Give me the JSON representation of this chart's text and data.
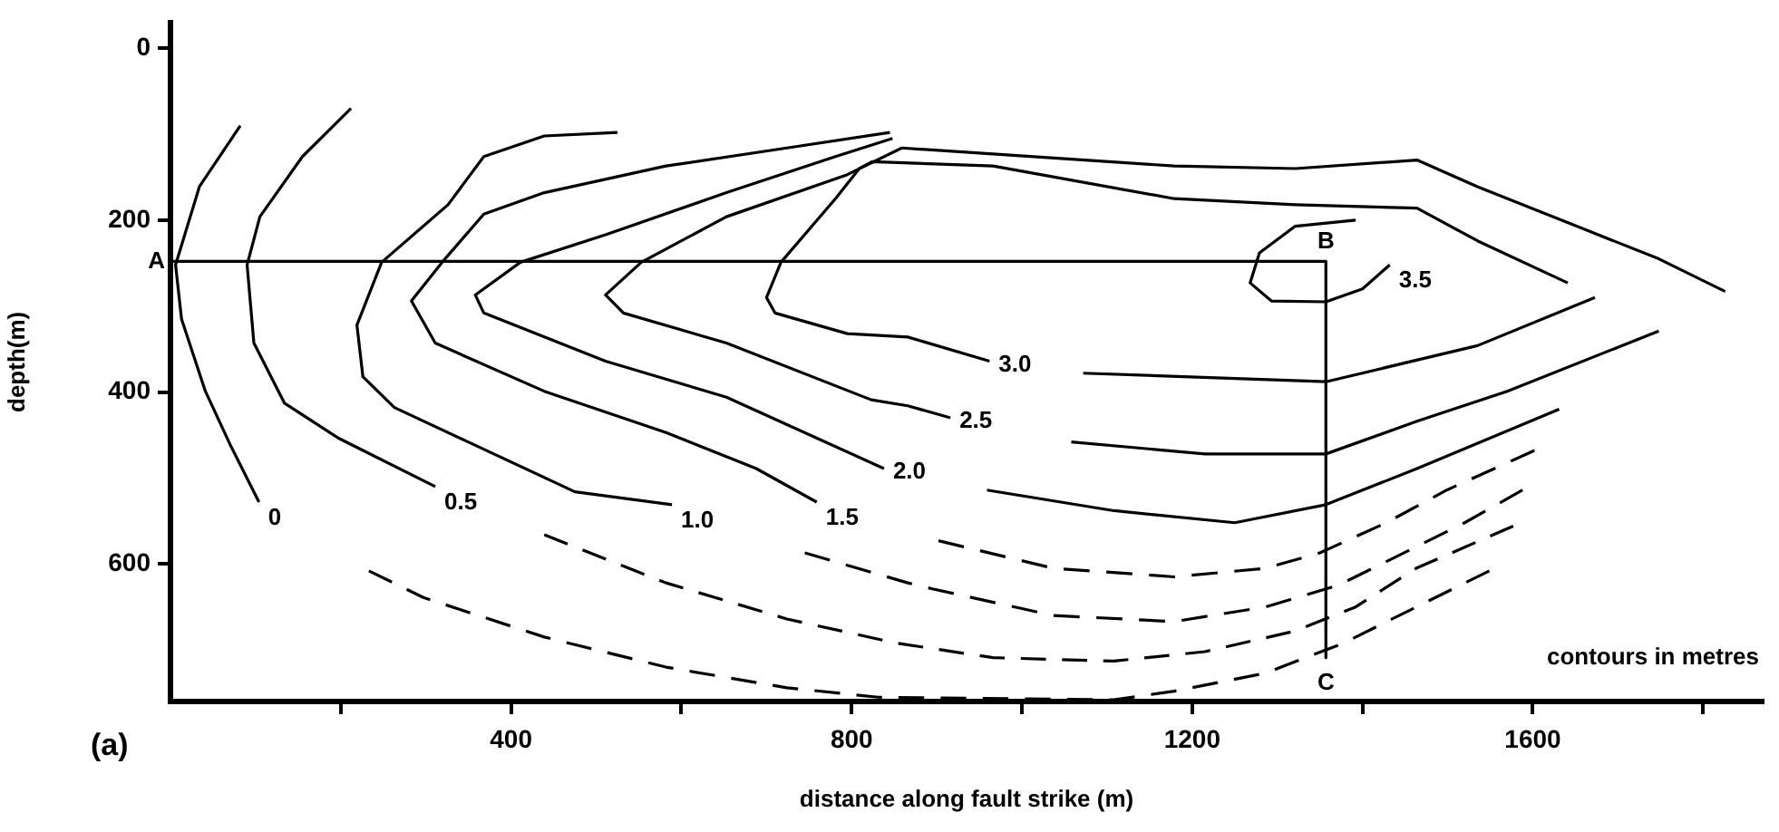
{
  "chart_data": {
    "type": "line",
    "xlabel": "distance along fault strike (m)",
    "ylabel": "depth(m)",
    "xlim": [
      0,
      1870
    ],
    "ylim": [
      760,
      -30
    ],
    "xticks": [
      {
        "value": 200,
        "label": null
      },
      400,
      {
        "value": 600,
        "label": null
      },
      800,
      {
        "value": 1000,
        "label": null
      },
      1200,
      {
        "value": 1400,
        "label": null
      },
      1600,
      {
        "value": 1800,
        "label": null
      }
    ],
    "yticks": [
      0,
      200,
      400,
      600
    ],
    "grid": false,
    "legend": false,
    "marker": "none",
    "series": [
      {
        "name": "0",
        "color": "#000000",
        "line_style": "solid",
        "x": [
          82,
          34,
          6,
          13,
          41,
          70,
          104
        ],
        "values": [
          90,
          161,
          252,
          315,
          399,
          461,
          528
        ]
      },
      {
        "color": "#000000",
        "line_style": "dashed",
        "x": [
          233,
          297,
          439,
          582,
          724,
          831,
          1108,
          1179,
          1286,
          1378,
          1449,
          1549
        ],
        "values": [
          608,
          639,
          685,
          720,
          744,
          755,
          758,
          748,
          727,
          692,
          657,
          608
        ]
      },
      {
        "name": "0.5",
        "color": "#000000",
        "line_style": "solid",
        "x": [
          212,
          155,
          105,
          90,
          98,
          134,
          198,
          311
        ],
        "values": [
          70,
          126,
          196,
          252,
          343,
          413,
          454,
          510
        ]
      },
      {
        "color": "#000000",
        "line_style": "dashed",
        "x": [
          439,
          582,
          724,
          852,
          966,
          1108,
          1215,
          1321,
          1392,
          1463,
          1577
        ],
        "values": [
          566,
          622,
          664,
          692,
          709,
          713,
          702,
          678,
          650,
          605,
          556
        ]
      },
      {
        "name": "1.0",
        "color": "#000000",
        "line_style": "solid",
        "x": [
          525,
          439,
          368,
          326,
          248,
          219,
          226,
          263,
          369,
          475,
          589
        ],
        "values": [
          98,
          102,
          126,
          182,
          249,
          322,
          382,
          418,
          467,
          516,
          531
        ]
      },
      {
        "color": "#000000",
        "line_style": "dashed",
        "x": [
          745,
          866,
          895,
          1037,
          1179,
          1286,
          1371,
          1449,
          1520,
          1588
        ],
        "values": [
          587,
          622,
          629,
          660,
          667,
          650,
          625,
          587,
          552,
          514
        ]
      },
      {
        "name": "1.5",
        "color": "#000000",
        "line_style": "solid",
        "x": [
          845,
          724,
          582,
          439,
          368,
          319,
          283,
          311,
          439,
          582,
          688,
          759
        ],
        "values": [
          98,
          116,
          137,
          168,
          193,
          249,
          294,
          343,
          399,
          447,
          489,
          528
        ]
      },
      {
        "color": "#000000",
        "line_style": "dashed",
        "x": [
          902,
          1037,
          1179,
          1286,
          1350,
          1428,
          1499,
          1602
        ],
        "values": [
          573,
          605,
          615,
          605,
          587,
          552,
          514,
          468
        ]
      },
      {
        "name": "2.0",
        "color": "#000000",
        "line_style": "solid",
        "x": [
          848,
          781,
          653,
          511,
          411,
          358,
          368,
          511,
          653,
          838,
          null,
          959,
          1108,
          1250,
          1357,
          1464,
          1631
        ],
        "values": [
          105,
          126,
          168,
          217,
          249,
          287,
          308,
          364,
          406,
          489,
          null,
          514,
          538,
          552,
          531,
          489,
          420
        ]
      },
      {
        "name": "2.5",
        "color": "#000000",
        "line_style": "solid",
        "x": [
          1826,
          1748,
          1535,
          1464,
          1321,
          1179,
          966,
          859,
          795,
          653,
          553,
          511,
          532,
          653,
          823,
          866,
          916,
          null,
          1058,
          1215,
          1357,
          1464,
          1570,
          1748
        ],
        "values": [
          283,
          245,
          161,
          130,
          140,
          137,
          123,
          116,
          147,
          196,
          249,
          287,
          308,
          343,
          409,
          416,
          430,
          null,
          458,
          472,
          472,
          434,
          399,
          329
        ]
      },
      {
        "name": "3.0",
        "color": "#000000",
        "line_style": "solid",
        "x": [
          1641,
          1535,
          1464,
          1321,
          1179,
          966,
          824,
          809,
          781,
          717,
          700,
          710,
          795,
          866,
          962,
          null,
          1072,
          1357,
          1535,
          1673
        ],
        "values": [
          273,
          224,
          186,
          182,
          175,
          137,
          132,
          140,
          175,
          249,
          290,
          308,
          332,
          336,
          364,
          null,
          378,
          388,
          346,
          290
        ]
      },
      {
        "name": "3.5",
        "color": "#000000",
        "line_style": "solid",
        "x": [
          1392,
          1321,
          1279,
          1268,
          1293,
          1357,
          1400,
          1432
        ],
        "values": [
          200,
          207,
          238,
          273,
          294,
          295,
          280,
          252
        ]
      },
      {
        "color": "#000000",
        "line_style": "solid",
        "x": [
          0,
          1357,
          1357
        ],
        "values": [
          248,
          248,
          709
        ],
        "value_labels": [
          "A",
          "B",
          "C"
        ]
      }
    ],
    "annotations": [
      "contours in metres",
      "(a)"
    ]
  }
}
